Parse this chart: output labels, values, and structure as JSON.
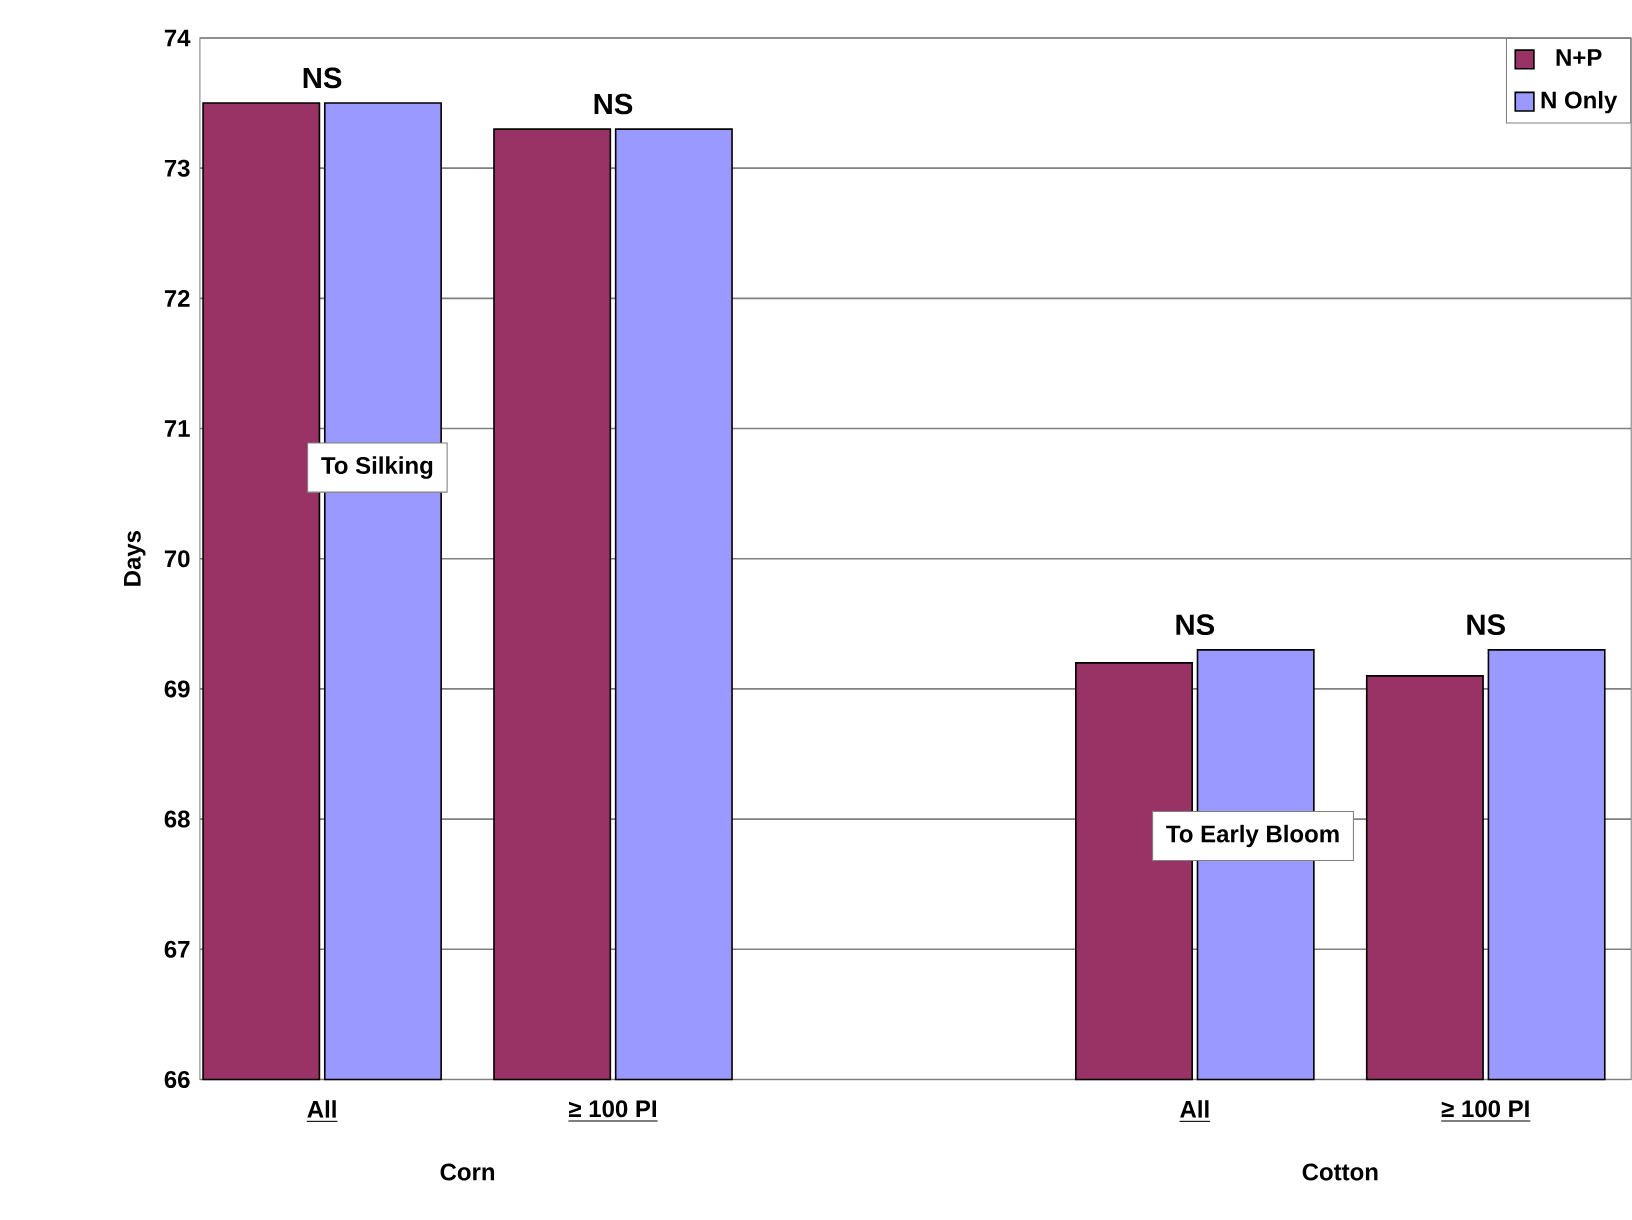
{
  "chart_data": {
    "type": "bar",
    "ylabel": "Days",
    "categories": [
      "All",
      "≥ 100 PI",
      null,
      "All",
      "≥ 100 PI"
    ],
    "series": [
      {
        "name": "N+P",
        "color": "#993366",
        "values": [
          73.5,
          73.3,
          null,
          69.2,
          69.1
        ]
      },
      {
        "name": "N Only",
        "color": "#9999ff",
        "values": [
          73.5,
          73.3,
          null,
          69.3,
          69.3
        ]
      }
    ],
    "ylim": [
      66,
      74
    ],
    "yticks": [
      66,
      67,
      68,
      69,
      70,
      71,
      72,
      73,
      74
    ],
    "grid": "y",
    "legend": "top right",
    "annotations": [
      "NS",
      "NS",
      "NS",
      "NS",
      "To Silking",
      "To Early Bloom",
      "Corn",
      "Cotton"
    ]
  }
}
